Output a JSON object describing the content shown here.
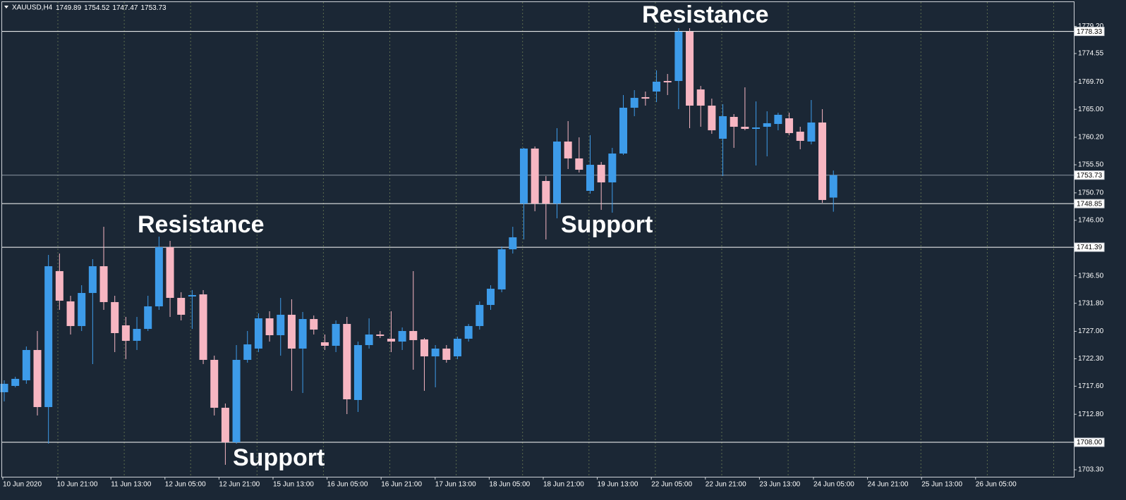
{
  "chart_data": {
    "type": "candlestick",
    "symbol": "XAUUSD,H4",
    "open": [
      1716.57,
      1717.65,
      1718.61,
      1723.8,
      1714.03,
      1737.3,
      1732.12,
      1727.9,
      1733.56,
      1738.14,
      1732.0,
      1728.02,
      1725.37,
      1727.41,
      1731.27,
      1741.4,
      1732.72,
      1732.96,
      1733.32,
      1722.11,
      1713.91,
      1708.01,
      1722.11,
      1724.04,
      1729.22,
      1726.33,
      1729.83,
      1724.04,
      1729.1,
      1725.12,
      1724.52,
      1728.26,
      1715.24,
      1724.64,
      1726.45,
      1725.73,
      1725.24,
      1727.05,
      1725.61,
      1722.71,
      1724.04,
      1722.71,
      1725.73,
      1727.9,
      1731.51,
      1734.17,
      1741.04,
      1748.87,
      1758.28,
      1752.73,
      1748.87,
      1759.48,
      1756.59,
      1751.04,
      1755.5,
      1752.49,
      1757.43,
      1765.27,
      1767.08,
      1768.04,
      1769.85,
      1769.85,
      1778.29,
      1768.4,
      1765.63,
      1759.96,
      1763.7,
      1762.01,
      1761.65,
      1762.01,
      1762.49,
      1763.46,
      1761.17,
      1759.48,
      1762.74,
      1749.89
    ],
    "high": [
      1718.61,
      1719.22,
      1724.4,
      1727.05,
      1740.07,
      1740.31,
      1733.08,
      1734.89,
      1739.35,
      1744.89,
      1733.08,
      1729.46,
      1729.46,
      1733.08,
      1743.21,
      1742.48,
      1733.69,
      1734.05,
      1734.05,
      1722.83,
      1714.64,
      1724.64,
      1727.05,
      1730.07,
      1730.43,
      1732.72,
      1732.48,
      1730.31,
      1729.71,
      1726.45,
      1728.86,
      1729.46,
      1725.24,
      1729.22,
      1727.05,
      1730.43,
      1727.66,
      1737.3,
      1725.85,
      1724.64,
      1724.64,
      1726.09,
      1728.26,
      1732.12,
      1734.89,
      1741.52,
      1744.89,
      1758.4,
      1758.64,
      1753.57,
      1761.77,
      1762.98,
      1760.2,
      1760.57,
      1755.99,
      1758.4,
      1767.44,
      1768.28,
      1768.04,
      1771.66,
      1771.05,
      1778.89,
      1778.89,
      1769.0,
      1766.83,
      1765.87,
      1764.18,
      1768.76,
      1766.35,
      1764.66,
      1764.42,
      1764.42,
      1762.01,
      1766.59,
      1765.03,
      1754.52
    ],
    "low": [
      1715.0,
      1717.41,
      1718.01,
      1712.59,
      1707.77,
      1730.67,
      1726.45,
      1727.05,
      1721.39,
      1730.67,
      1723.44,
      1722.23,
      1723.8,
      1727.05,
      1730.67,
      1729.46,
      1728.86,
      1727.41,
      1721.39,
      1712.59,
      1704.15,
      1707.77,
      1721.63,
      1723.44,
      1725.24,
      1722.83,
      1716.81,
      1716.44,
      1726.45,
      1723.8,
      1723.44,
      1712.83,
      1713.19,
      1724.04,
      1725.85,
      1723.44,
      1723.8,
      1720.42,
      1716.81,
      1717.41,
      1721.63,
      1722.23,
      1725.24,
      1727.29,
      1730.67,
      1733.69,
      1740.31,
      1742.72,
      1747.55,
      1742.72,
      1746.34,
      1754.78,
      1754.18,
      1750.56,
      1747.79,
      1747.31,
      1757.19,
      1763.82,
      1765.63,
      1766.23,
      1767.44,
      1765.03,
      1761.77,
      1762.01,
      1760.81,
      1753.57,
      1758.4,
      1761.41,
      1755.38,
      1756.95,
      1761.41,
      1760.57,
      1758.16,
      1759.0,
      1748.99,
      1747.47
    ],
    "close": [
      1718.01,
      1718.86,
      1723.8,
      1714.03,
      1738.14,
      1732.24,
      1727.9,
      1733.56,
      1738.14,
      1732.0,
      1726.69,
      1725.37,
      1727.41,
      1731.27,
      1741.4,
      1732.72,
      1729.83,
      1733.2,
      1722.11,
      1713.91,
      1708.01,
      1722.11,
      1724.76,
      1729.22,
      1726.33,
      1729.83,
      1724.04,
      1729.1,
      1727.29,
      1724.52,
      1728.26,
      1715.36,
      1724.64,
      1726.45,
      1726.21,
      1725.24,
      1727.05,
      1725.49,
      1722.71,
      1724.04,
      1722.11,
      1725.73,
      1727.9,
      1731.51,
      1734.29,
      1741.04,
      1743.09,
      1758.28,
      1748.87,
      1748.87,
      1759.48,
      1756.59,
      1754.66,
      1755.5,
      1752.49,
      1757.43,
      1765.27,
      1766.96,
      1766.83,
      1769.73,
      1769.61,
      1778.29,
      1765.63,
      1765.63,
      1761.41,
      1763.82,
      1762.01,
      1761.65,
      1761.89,
      1762.62,
      1764.06,
      1760.93,
      1759.6,
      1762.74,
      1749.48,
      1753.73
    ],
    "up_color": "#3d9be9",
    "down_color": "#f7b6c2",
    "ylim": [
      1702.1,
      1783.71
    ],
    "yticks": [
      {
        "value": 1703.3,
        "label": "1703.30"
      },
      {
        "value": 1712.8,
        "label": "1712.80"
      },
      {
        "value": 1717.6,
        "label": "1717.60"
      },
      {
        "value": 1722.3,
        "label": "1722.30"
      },
      {
        "value": 1727,
        "label": "1727.00"
      },
      {
        "value": 1731.8,
        "label": "1731.80"
      },
      {
        "value": 1736.5,
        "label": "1736.50"
      },
      {
        "value": 1746,
        "label": "1746.00"
      },
      {
        "value": 1750.7,
        "label": "1750.70"
      },
      {
        "value": 1755.5,
        "label": "1755.50"
      },
      {
        "value": 1760.2,
        "label": "1760.20"
      },
      {
        "value": 1765,
        "label": "1765.00"
      },
      {
        "value": 1769.7,
        "label": "1769.70"
      },
      1774.55,
      {
        "value": 1779.2,
        "label": "1779.20"
      }
    ],
    "xticks": [
      "10 Jun 2020",
      "10 Jun 21:00",
      "11 Jun 13:00",
      "12 Jun 05:00",
      "12 Jun 21:00",
      "15 Jun 13:00",
      "16 Jun 05:00",
      "16 Jun 21:00",
      "17 Jun 13:00",
      "18 Jun 05:00",
      "18 Jun 21:00",
      "19 Jun 13:00",
      "22 Jun 05:00",
      "22 Jun 21:00",
      "23 Jun 13:00",
      "24 Jun 05:00",
      "24 Jun 21:00",
      "25 Jun 13:00",
      "26 Jun 05:00"
    ],
    "levels": [
      1778.33,
      1748.85,
      1741.39,
      {
        "value": 1708,
        "label": "1708.00"
      }
    ],
    "annotations": [
      "Resistance",
      "Resistance",
      "Support",
      "Support"
    ],
    "grid": true
  }
}
